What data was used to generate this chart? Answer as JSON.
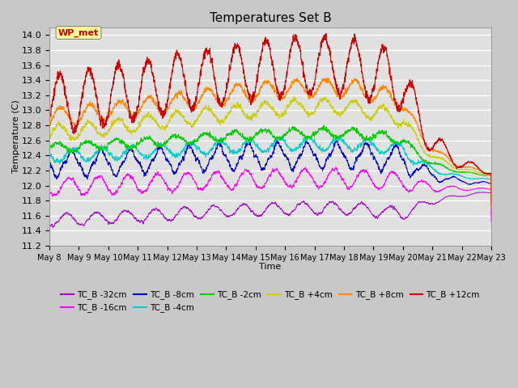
{
  "title": "Temperatures Set B",
  "xlabel": "Time",
  "ylabel": "Temperature (C)",
  "ylim": [
    11.2,
    14.1
  ],
  "xlim": [
    0,
    360
  ],
  "fig_facecolor": "#c8c8c8",
  "ax_facecolor": "#e0e0e0",
  "series": [
    {
      "label": "TC_B -32cm",
      "color": "#aa00cc"
    },
    {
      "label": "TC_B -16cm",
      "color": "#ff00ff"
    },
    {
      "label": "TC_B -8cm",
      "color": "#0000cc"
    },
    {
      "label": "TC_B -4cm",
      "color": "#00cccc"
    },
    {
      "label": "TC_B -2cm",
      "color": "#00cc00"
    },
    {
      "label": "TC_B +4cm",
      "color": "#cccc00"
    },
    {
      "label": "TC_B +8cm",
      "color": "#ff8800"
    },
    {
      "label": "TC_B +12cm",
      "color": "#cc0000"
    }
  ],
  "xtick_labels": [
    "May 8",
    "May 9",
    "May 10",
    "May 11",
    "May 12",
    "May 13",
    "May 14",
    "May 15",
    "May 16",
    "May 17",
    "May 18",
    "May 19",
    "May 20",
    "May 21",
    "May 22",
    "May 23"
  ],
  "xtick_positions": [
    0,
    24,
    48,
    72,
    96,
    120,
    144,
    168,
    192,
    216,
    240,
    264,
    288,
    312,
    336,
    360
  ],
  "wp_met_color": "#cc0000",
  "wp_met_bg": "#ffff99"
}
